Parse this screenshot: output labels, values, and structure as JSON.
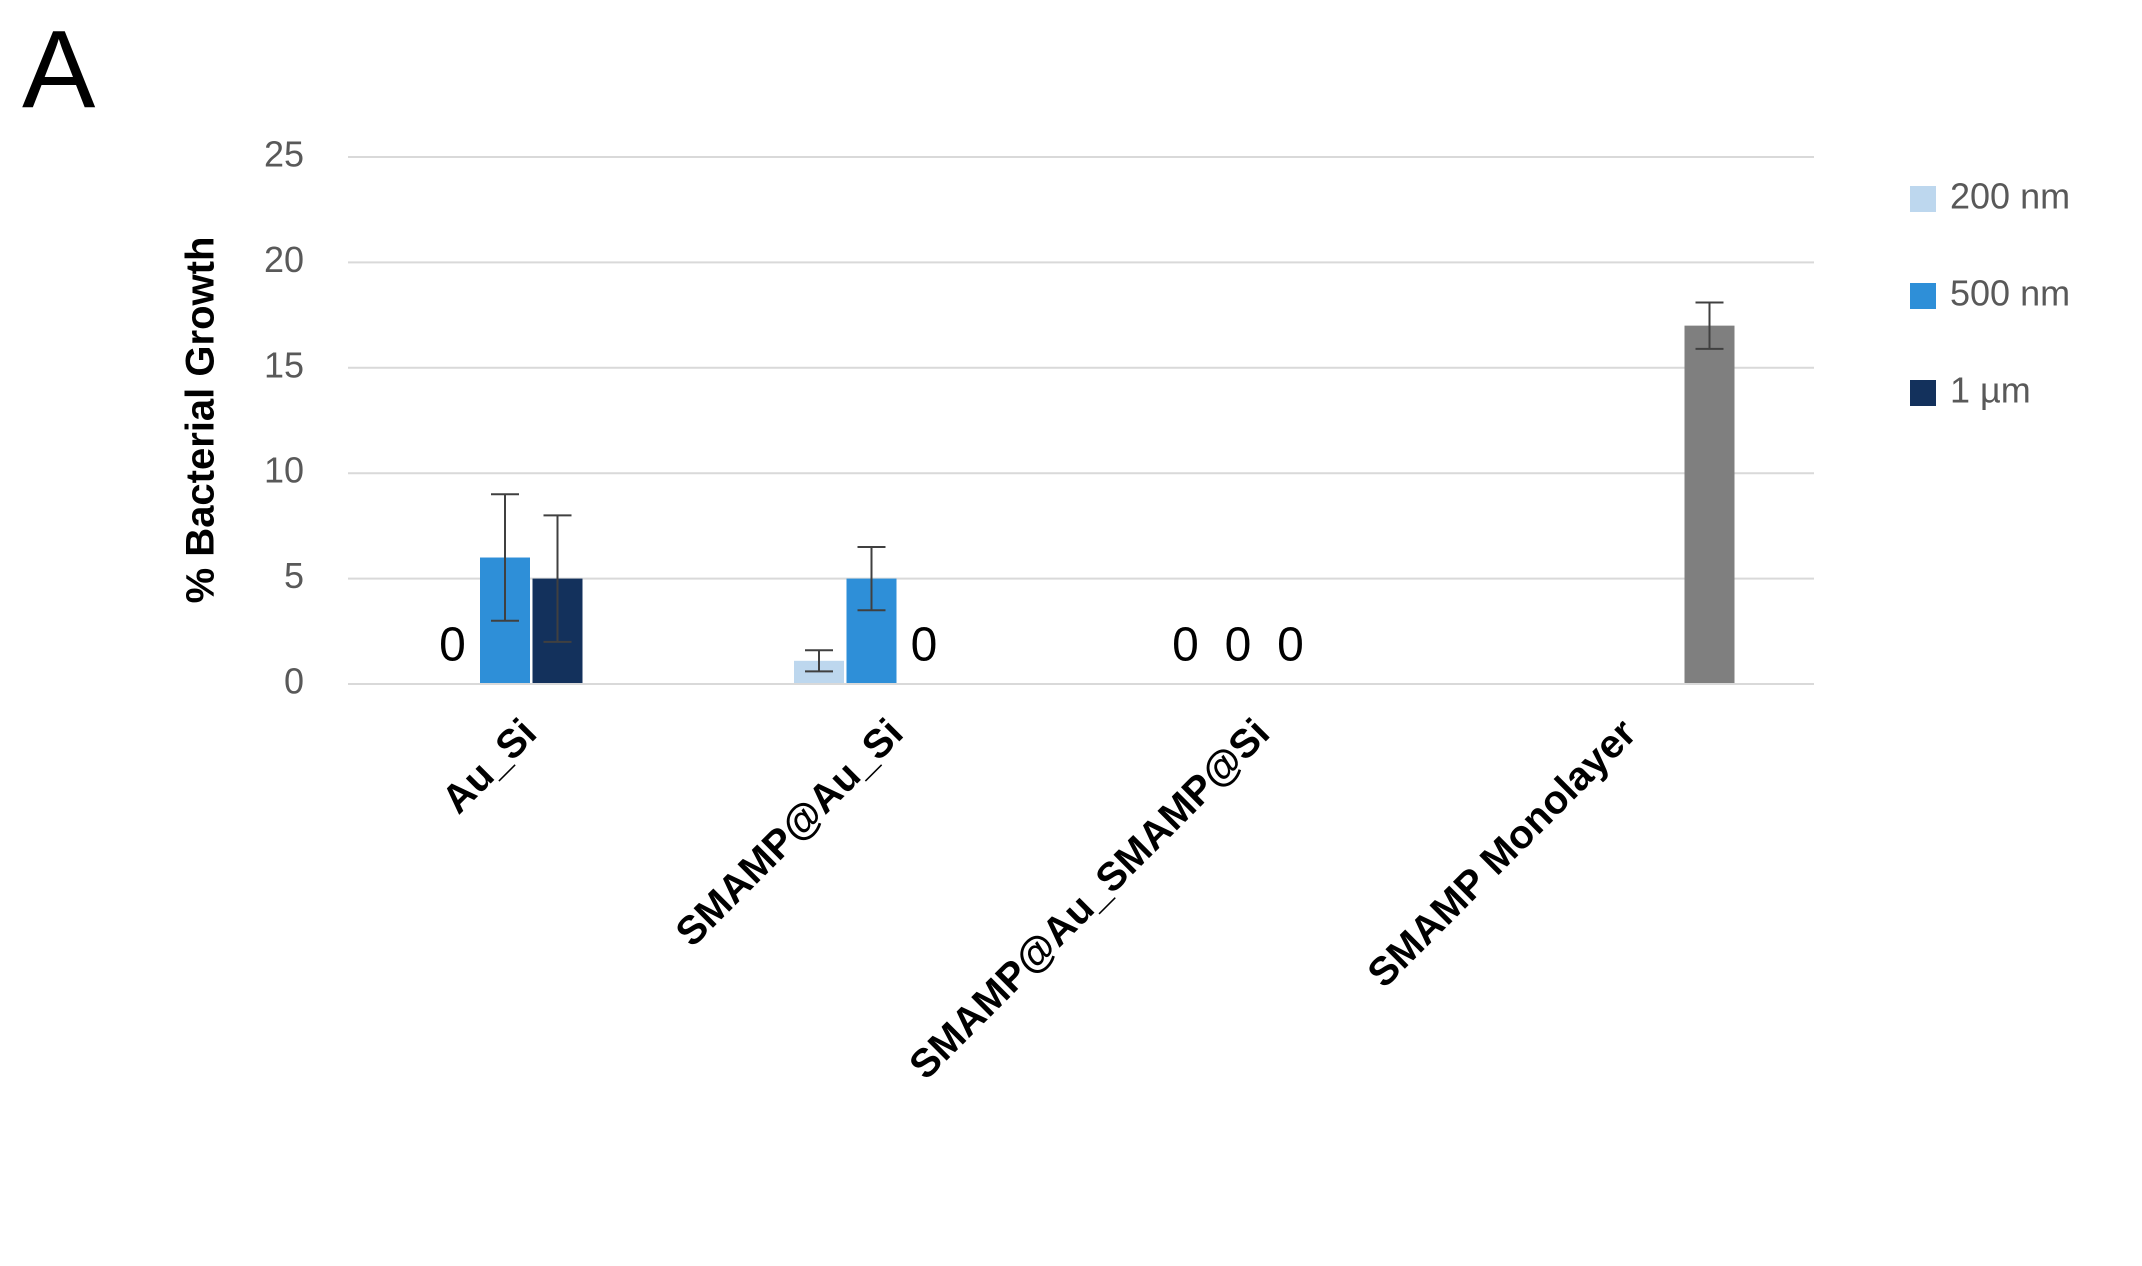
{
  "chart_data": {
    "type": "bar",
    "panel_label": "A",
    "y_label": "% Bacterial Growth",
    "categories": [
      "Au_Si",
      "SMAMP@Au_Si",
      "SMAMP@Au_SMAMP@Si",
      "SMAMP Monolayer"
    ],
    "series": [
      {
        "name": "200 nm",
        "color": "#bdd7ee",
        "values": [
          0,
          1.1,
          0,
          null
        ],
        "errors": [
          null,
          0.5,
          null,
          null
        ]
      },
      {
        "name": "500 nm",
        "color": "#2e8fd8",
        "values": [
          6,
          5,
          0,
          null
        ],
        "errors": [
          3,
          1.5,
          null,
          null
        ]
      },
      {
        "name": "1 µm",
        "color": "#13315c",
        "values": [
          5,
          0,
          0,
          null
        ],
        "errors": [
          3,
          null,
          null,
          null
        ]
      },
      {
        "color": "#7f7f7f",
        "values": [
          null,
          null,
          null,
          17
        ],
        "errors": [
          null,
          null,
          null,
          1.1
        ]
      }
    ],
    "ylim": [
      0,
      25
    ],
    "yticks": [
      0,
      5,
      10,
      15,
      20,
      25
    ],
    "grid": true,
    "legend": "right"
  }
}
